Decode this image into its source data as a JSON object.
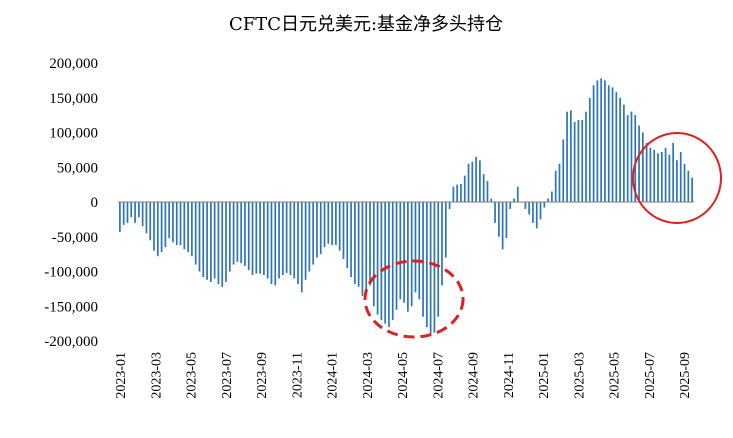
{
  "chart_data": {
    "type": "bar",
    "title": "CFTC日元兑美元:基金净多头持仓",
    "xlabel": "",
    "ylabel": "",
    "ylim": [
      -200000,
      200000
    ],
    "y_ticks": [
      200000,
      150000,
      100000,
      50000,
      0,
      -50000,
      -100000,
      -150000,
      -200000
    ],
    "y_tick_labels": [
      "200,000",
      "150,000",
      "100,000",
      "50,000",
      "0",
      "-50,000",
      "-100,000",
      "-150,000",
      "-200,000"
    ],
    "x_tick_labels": [
      "2023-01",
      "2023-03",
      "2023-05",
      "2023-07",
      "2023-09",
      "2023-11",
      "2024-01",
      "2024-03",
      "2024-05",
      "2024-07",
      "2024-09",
      "2024-11",
      "2025-01",
      "2025-03",
      "2025-05",
      "2025-07",
      "2025-09"
    ],
    "bar_color": "#2e75b6",
    "grid": false,
    "annotations": [
      {
        "shape": "ellipse",
        "style": "dashed",
        "color": "#e02020",
        "label": "2024-05 to 2024-07 low"
      },
      {
        "shape": "ellipse",
        "style": "solid",
        "color": "#e02020",
        "label": "2025-08 to 2025-10 decline"
      }
    ],
    "series": [
      {
        "values": [
          -43000,
          -33000,
          -30000,
          -22000,
          -30000,
          -22000,
          -35000,
          -45000,
          -55000,
          -70000,
          -78000,
          -72000,
          -65000,
          -52000,
          -58000,
          -62000,
          -62000,
          -68000,
          -72000,
          -78000,
          -90000,
          -100000,
          -108000,
          -112000,
          -115000,
          -110000,
          -118000,
          -122000,
          -115000,
          -100000,
          -90000,
          -86000,
          -88000,
          -92000,
          -98000,
          -105000,
          -103000,
          -103000,
          -105000,
          -110000,
          -118000,
          -120000,
          -110000,
          -105000,
          -102000,
          -105000,
          -110000,
          -118000,
          -130000,
          -112000,
          -100000,
          -90000,
          -80000,
          -75000,
          -65000,
          -60000,
          -62000,
          -62000,
          -70000,
          -82000,
          -95000,
          -108000,
          -118000,
          -122000,
          -135000,
          -130000,
          -120000,
          -150000,
          -162000,
          -170000,
          -175000,
          -180000,
          -170000,
          -155000,
          -140000,
          -145000,
          -158000,
          -150000,
          -130000,
          -140000,
          -165000,
          -180000,
          -190000,
          -188000,
          -165000,
          -120000,
          -80000,
          -10000,
          22000,
          25000,
          26000,
          38000,
          55000,
          58000,
          65000,
          60000,
          40000,
          30000,
          5000,
          -30000,
          -50000,
          -68000,
          -52000,
          -10000,
          5000,
          22000,
          0,
          -10000,
          -18000,
          -30000,
          -38000,
          -25000,
          -8000,
          5000,
          15000,
          45000,
          55000,
          90000,
          130000,
          132000,
          115000,
          118000,
          118000,
          130000,
          150000,
          168000,
          175000,
          178000,
          175000,
          168000,
          165000,
          158000,
          150000,
          140000,
          125000,
          130000,
          125000,
          110000,
          100000,
          85000,
          78000,
          75000,
          70000,
          72000,
          78000,
          68000,
          85000,
          60000,
          72000,
          55000,
          45000,
          35000
        ]
      }
    ]
  }
}
